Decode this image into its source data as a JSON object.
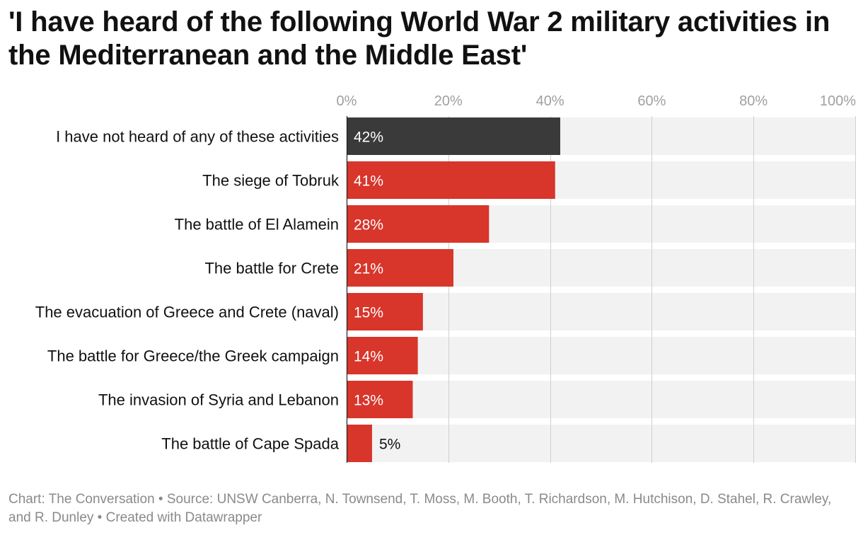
{
  "chart_data": {
    "type": "bar",
    "orientation": "horizontal",
    "title": "'I have heard of the following World War 2 military activities in the Mediterranean and the Middle East'",
    "categories": [
      "I have not heard of any of these activities",
      "The siege of Tobruk",
      "The battle of El Alamein",
      "The battle for Crete",
      "The evacuation of Greece and Crete (naval)",
      "The battle for Greece/the Greek campaign",
      "The invasion of Syria and Lebanon",
      "The battle of Cape Spada"
    ],
    "values": [
      42,
      41,
      28,
      21,
      15,
      14,
      13,
      5
    ],
    "value_labels": [
      "42%",
      "41%",
      "28%",
      "21%",
      "15%",
      "14%",
      "13%",
      "5%"
    ],
    "bar_colors": [
      "#3a3a3a",
      "#d8352b",
      "#d8352b",
      "#d8352b",
      "#d8352b",
      "#d8352b",
      "#d8352b",
      "#d8352b"
    ],
    "xlim": [
      0,
      100
    ],
    "xticks": [
      0,
      20,
      40,
      60,
      80,
      100
    ],
    "xtick_labels": [
      "0%",
      "20%",
      "40%",
      "60%",
      "80%",
      "100%"
    ],
    "xlabel": "",
    "ylabel": "",
    "grid": true,
    "axis_position": "top"
  },
  "footer": {
    "text": "Chart: The Conversation • Source: UNSW Canberra, N. Townsend, T. Moss, M. Booth, T. Richardson, M. Hutchison, D. Stahel, R. Crawley, and R. Dunley • Created with Datawrapper"
  },
  "colors": {
    "title": "#111111",
    "track": "#f2f2f2",
    "grid": "#cfcfcf",
    "axis_label": "#a0a0a0",
    "footer": "#8a8a8a",
    "label_inside": "#ffffff",
    "label_outside": "#111111"
  }
}
